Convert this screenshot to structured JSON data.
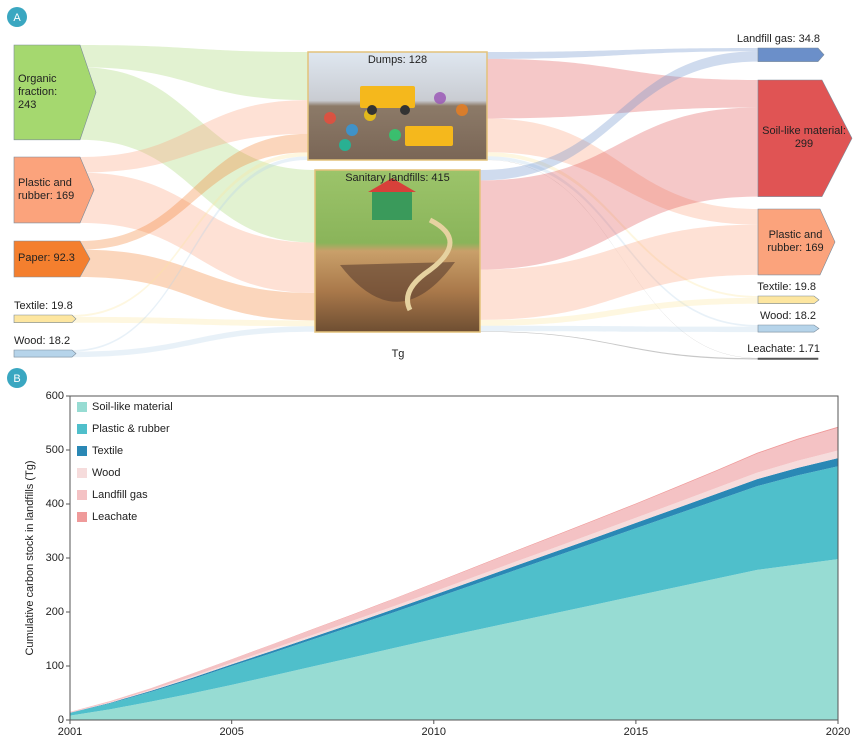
{
  "panel_labels": [
    "A",
    "B"
  ],
  "chart_data": [
    {
      "type": "sankey",
      "unit": "Tg",
      "nodes": [
        {
          "label": "Organic fraction: 243",
          "value": 243,
          "color": "#a5d86f"
        },
        {
          "label": "Plastic and rubber: 169",
          "value": 169,
          "color": "#fba37c"
        },
        {
          "label": "Paper: 92.3",
          "value": 92.3,
          "color": "#f47f2e"
        },
        {
          "label": "Textile: 19.8",
          "value": 19.8,
          "color": "#fde6a0"
        },
        {
          "label": "Wood: 18.2",
          "value": 18.2,
          "color": "#b6d4ea"
        },
        {
          "label": "Dumps: 128",
          "value": 128,
          "color": "#e8c98a"
        },
        {
          "label": "Sanitary landfills: 415",
          "value": 415,
          "color": "#c8c3e6"
        },
        {
          "label": "Landfill gas: 34.8",
          "value": 34.8,
          "color": "#6b8fc9"
        },
        {
          "label": "Soil-like material: 299",
          "value": 299,
          "color": "#e05454"
        },
        {
          "label": "Plastic and rubber: 169",
          "value": 169,
          "color": "#fba37c"
        },
        {
          "label": "Textile: 19.8",
          "value": 19.8,
          "color": "#fde6a0"
        },
        {
          "label": "Wood: 18.2",
          "value": 18.2,
          "color": "#b6d4ea"
        },
        {
          "label": "Leachate: 1.71",
          "value": 1.71,
          "color": "#555555"
        }
      ],
      "links": [
        {
          "source": 0,
          "target": 5,
          "value": 57
        },
        {
          "source": 0,
          "target": 6,
          "value": 186
        },
        {
          "source": 1,
          "target": 5,
          "value": 40
        },
        {
          "source": 1,
          "target": 6,
          "value": 129
        },
        {
          "source": 2,
          "target": 5,
          "value": 22
        },
        {
          "source": 2,
          "target": 6,
          "value": 70.3
        },
        {
          "source": 3,
          "target": 5,
          "value": 4.7
        },
        {
          "source": 3,
          "target": 6,
          "value": 15.1
        },
        {
          "source": 4,
          "target": 5,
          "value": 4.3
        },
        {
          "source": 4,
          "target": 6,
          "value": 13.9
        },
        {
          "source": 5,
          "target": 7,
          "value": 8.2
        },
        {
          "source": 5,
          "target": 8,
          "value": 70.6
        },
        {
          "source": 5,
          "target": 9,
          "value": 40
        },
        {
          "source": 5,
          "target": 10,
          "value": 4.7
        },
        {
          "source": 5,
          "target": 11,
          "value": 4.3
        },
        {
          "source": 5,
          "target": 12,
          "value": 0.2
        },
        {
          "source": 6,
          "target": 7,
          "value": 26.6
        },
        {
          "source": 6,
          "target": 8,
          "value": 228.4
        },
        {
          "source": 6,
          "target": 9,
          "value": 129
        },
        {
          "source": 6,
          "target": 10,
          "value": 15.1
        },
        {
          "source": 6,
          "target": 11,
          "value": 13.9
        },
        {
          "source": 6,
          "target": 12,
          "value": 1.51
        }
      ]
    },
    {
      "type": "area",
      "stacked": true,
      "ylabel": "Cumulative carbon stock in landfills (Tg)",
      "x": [
        2001,
        2002,
        2003,
        2004,
        2005,
        2006,
        2007,
        2008,
        2009,
        2010,
        2011,
        2012,
        2013,
        2014,
        2015,
        2016,
        2017,
        2018,
        2019,
        2020
      ],
      "xlim": [
        2001,
        2020
      ],
      "xticks": [
        2001,
        2005,
        2010,
        2015,
        2020
      ],
      "ylim": [
        0,
        600
      ],
      "yticks": [
        0,
        100,
        200,
        300,
        400,
        500,
        600
      ],
      "legend": "upper-left",
      "series": [
        {
          "name": "Soil-like material",
          "color": "#97dcd3",
          "values": [
            8,
            20,
            34,
            49,
            65,
            82,
            99,
            116,
            133,
            150,
            166,
            182,
            198,
            214,
            230,
            246,
            262,
            278,
            288,
            298
          ]
        },
        {
          "name": "Plastic & rubber",
          "color": "#4fbfcb",
          "values": [
            5,
            11,
            18,
            26,
            35,
            42,
            50,
            58,
            66,
            75,
            85,
            95,
            105,
            115,
            125,
            135,
            145,
            155,
            165,
            172
          ]
        },
        {
          "name": "Textile",
          "color": "#2a88b5",
          "values": [
            0.5,
            1,
            2,
            2.5,
            3,
            4,
            4.5,
            5,
            6,
            6.5,
            7,
            8,
            8.5,
            9,
            10,
            11,
            12,
            13,
            14,
            15
          ]
        },
        {
          "name": "Wood",
          "color": "#f6dcdc",
          "values": [
            0.5,
            1,
            1.5,
            2.5,
            3,
            3.5,
            4,
            5,
            5.5,
            6,
            7,
            7.5,
            8,
            9,
            9.5,
            10,
            11,
            12,
            13,
            14
          ]
        },
        {
          "name": "Landfill gas",
          "color": "#f4c2c4",
          "values": [
            1,
            2,
            3,
            5,
            6,
            8,
            10,
            11,
            13,
            15,
            17,
            19,
            21,
            23,
            25,
            28,
            31,
            35,
            39,
            42
          ]
        },
        {
          "name": "Leachate",
          "color": "#ef9a9a",
          "values": [
            0.1,
            0.2,
            0.3,
            0.4,
            0.5,
            0.6,
            0.7,
            0.8,
            0.9,
            1,
            1.1,
            1.2,
            1.3,
            1.4,
            1.5,
            1.6,
            1.7,
            1.8,
            1.9,
            2
          ]
        }
      ]
    }
  ]
}
